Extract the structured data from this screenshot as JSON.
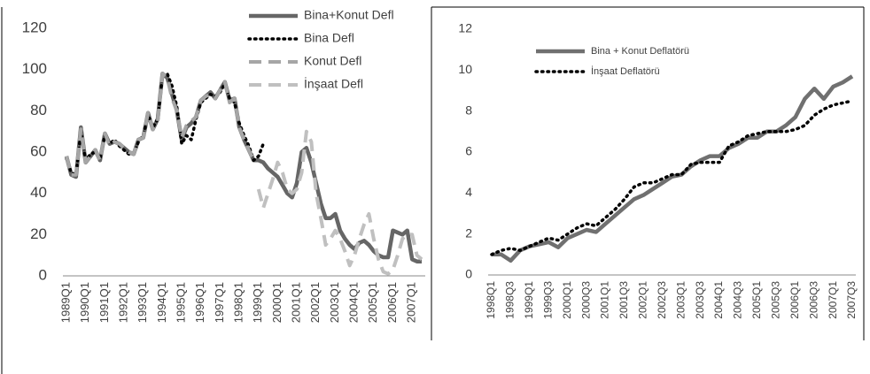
{
  "chart_data": [
    {
      "type": "line",
      "categories": [
        "1989Q1",
        null,
        null,
        null,
        "1990Q1",
        null,
        null,
        null,
        "1991Q1",
        null,
        null,
        null,
        "1992Q1",
        null,
        null,
        null,
        "1993Q1",
        null,
        null,
        null,
        "1994Q1",
        null,
        null,
        null,
        "1995Q1",
        null,
        null,
        null,
        "1996Q1",
        null,
        null,
        null,
        "1997Q1",
        null,
        null,
        null,
        "1998Q1",
        null,
        null,
        null,
        "1999Q1",
        null,
        null,
        null,
        "2000Q1",
        null,
        null,
        null,
        "2001Q1",
        null,
        null,
        null,
        "2002Q1",
        null,
        null,
        null,
        "2003Q1",
        null,
        null,
        null,
        "2004Q1",
        null,
        null,
        null,
        "2005Q1",
        null,
        null,
        null,
        "2006Q1",
        null,
        null,
        null,
        "2007Q1",
        null,
        null
      ],
      "series": [
        {
          "name": "Bina+Konut Defl",
          "color": "#666666",
          "style": "solid",
          "values": [
            58,
            49,
            48,
            72,
            55,
            58,
            61,
            56,
            69,
            64,
            65,
            64,
            62,
            60,
            59,
            66,
            67,
            79,
            71,
            76,
            98,
            96,
            88,
            80,
            66,
            72,
            74,
            77,
            85,
            87,
            89,
            86,
            90,
            94,
            85,
            86,
            72,
            66,
            61,
            56,
            56,
            55,
            52,
            50,
            48,
            44,
            40,
            38,
            45,
            60,
            62,
            55,
            45,
            35,
            28,
            28,
            30,
            22,
            18,
            15,
            13,
            16,
            17,
            15,
            12,
            10,
            9,
            9,
            22,
            21,
            20,
            22,
            8,
            7,
            7
          ]
        },
        {
          "name": "Bina Defl",
          "color": "#000000",
          "style": "dotted",
          "values": [
            57,
            50,
            49,
            70,
            56,
            59,
            60,
            57,
            68,
            64,
            66,
            63,
            61,
            59,
            59,
            65,
            68,
            78,
            72,
            76,
            97,
            98,
            92,
            82,
            64,
            68,
            66,
            76,
            84,
            86,
            88,
            87,
            89,
            93,
            86,
            84,
            74,
            68,
            63,
            56,
            58,
            64,
            null,
            null,
            null,
            null,
            null,
            null,
            null,
            null,
            null,
            null,
            null,
            null,
            null,
            null,
            null,
            null,
            null,
            null,
            null,
            null,
            null,
            null,
            null,
            null,
            null,
            null,
            null,
            null,
            null,
            null,
            null,
            null,
            null
          ]
        },
        {
          "name": "Konut Defl",
          "color": "#a6a6a6",
          "style": "dashed",
          "values": [
            58,
            49,
            49,
            71,
            55,
            58,
            61,
            56,
            69,
            63,
            65,
            64,
            62,
            60,
            59,
            66,
            67,
            79,
            71,
            75,
            98,
            96,
            86,
            80,
            67,
            73,
            75,
            77,
            85,
            87,
            88,
            86,
            90,
            94,
            84,
            86,
            72,
            66,
            61,
            56,
            null,
            null,
            null,
            null,
            null,
            null,
            null,
            null,
            null,
            null,
            null,
            null,
            null,
            null,
            null,
            null,
            null,
            null,
            null,
            null,
            null,
            null,
            null,
            null,
            null,
            null,
            null,
            null,
            null,
            null,
            null,
            null,
            null,
            null,
            null
          ]
        },
        {
          "name": "İnşaat Defl",
          "color": "#c0c0c0",
          "style": "dashed",
          "values": [
            null,
            null,
            null,
            null,
            null,
            null,
            null,
            null,
            null,
            null,
            null,
            null,
            null,
            null,
            null,
            null,
            null,
            null,
            null,
            null,
            null,
            null,
            null,
            null,
            null,
            null,
            null,
            null,
            null,
            null,
            null,
            null,
            null,
            null,
            null,
            null,
            null,
            null,
            null,
            null,
            42,
            33,
            40,
            47,
            55,
            50,
            42,
            40,
            42,
            50,
            70,
            65,
            40,
            28,
            15,
            18,
            22,
            18,
            12,
            5,
            10,
            18,
            25,
            30,
            18,
            8,
            2,
            1,
            3,
            10,
            18,
            20,
            20,
            10,
            8
          ]
        }
      ],
      "ylim": [
        0,
        120
      ],
      "yticks": [
        0,
        20,
        40,
        60,
        80,
        100,
        120
      ],
      "legend": "top-right"
    },
    {
      "type": "line",
      "categories": [
        "1998Q1",
        null,
        "1998Q3",
        null,
        "1999Q1",
        null,
        "1999Q3",
        null,
        "2000Q1",
        null,
        "2000Q3",
        null,
        "2001Q1",
        null,
        "2001Q3",
        null,
        "2002Q1",
        null,
        "2002Q3",
        null,
        "2003Q1",
        null,
        "2003Q3",
        null,
        "2004Q1",
        null,
        "2004Q3",
        null,
        "2005Q1",
        null,
        "2005Q3",
        null,
        "2006Q1",
        null,
        "2006Q3",
        null,
        "2007Q1",
        null,
        "2007Q3"
      ],
      "series": [
        {
          "name": "Bina + Konut Deflatörü",
          "color": "#707070",
          "style": "solid",
          "values": [
            1.0,
            1.0,
            0.7,
            1.2,
            1.4,
            1.5,
            1.6,
            1.35,
            1.8,
            2.0,
            2.2,
            2.1,
            2.5,
            2.9,
            3.3,
            3.7,
            3.9,
            4.2,
            4.5,
            4.8,
            4.9,
            5.3,
            5.6,
            5.8,
            5.8,
            6.2,
            6.4,
            6.7,
            6.7,
            7.0,
            7.0,
            7.3,
            7.7,
            8.6,
            9.1,
            8.6,
            9.2,
            9.4,
            9.7
          ]
        },
        {
          "name": "İnşaat Deflatörü",
          "color": "#000000",
          "style": "dotted",
          "values": [
            1.0,
            1.2,
            1.3,
            1.2,
            1.4,
            1.6,
            1.8,
            1.7,
            2.0,
            2.3,
            2.5,
            2.4,
            2.8,
            3.2,
            3.7,
            4.3,
            4.5,
            4.5,
            4.7,
            4.9,
            4.9,
            5.4,
            5.5,
            5.5,
            5.5,
            6.3,
            6.5,
            6.8,
            6.9,
            7.0,
            7.0,
            7.0,
            7.1,
            7.3,
            7.8,
            8.1,
            8.3,
            8.4,
            8.5
          ]
        }
      ],
      "ylim": [
        0,
        12
      ],
      "yticks": [
        0,
        2,
        4,
        6,
        8,
        10,
        12
      ],
      "legend": "top-left"
    }
  ]
}
